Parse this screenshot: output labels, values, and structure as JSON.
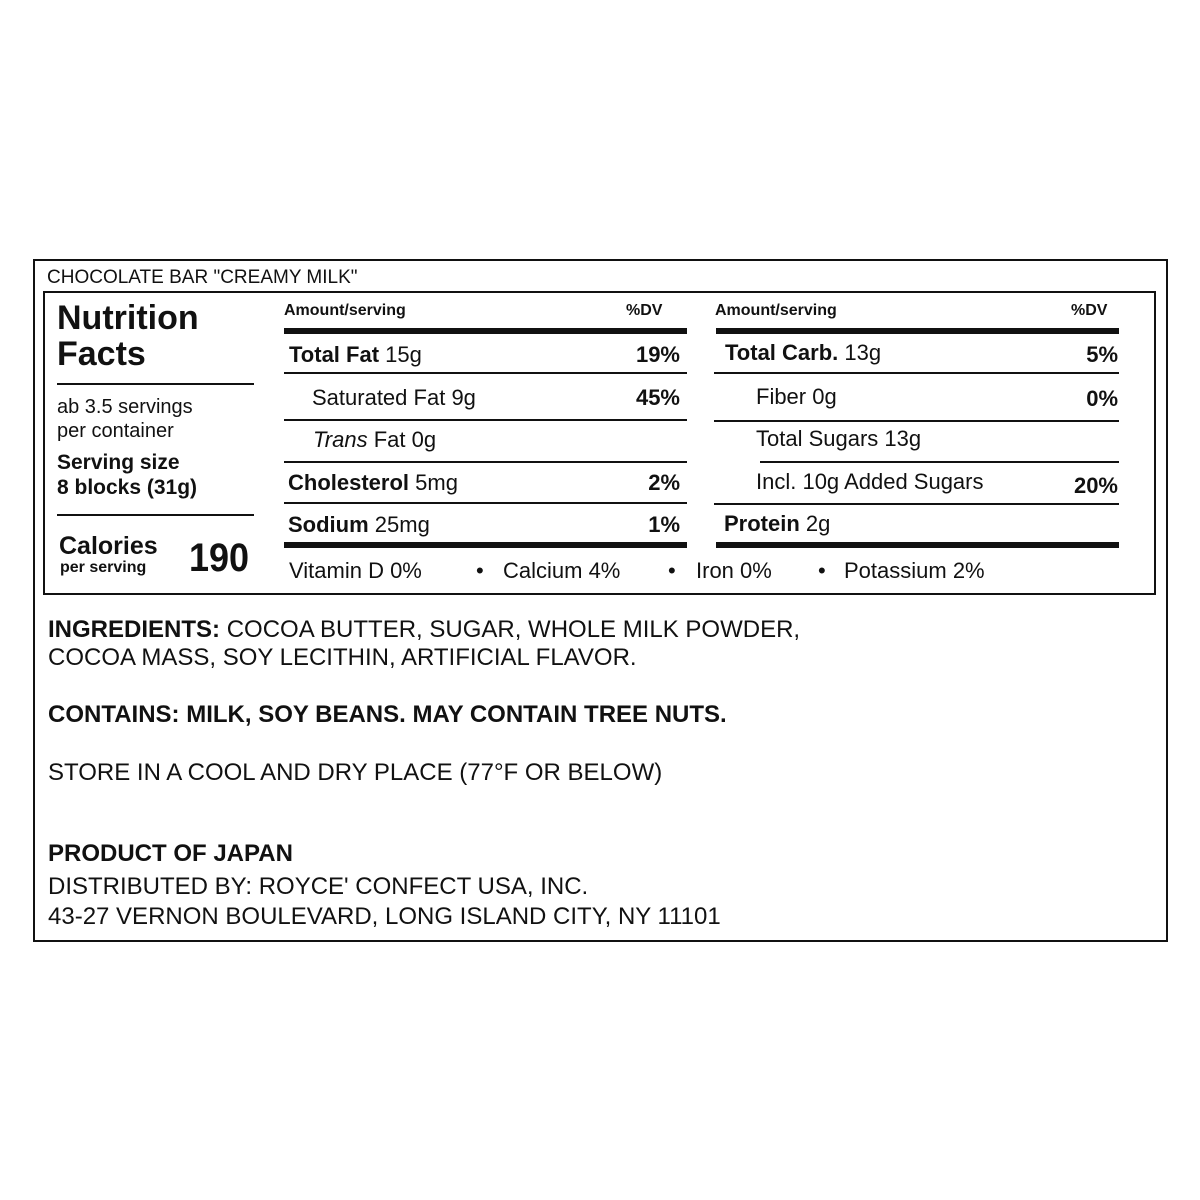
{
  "product_title": "CHOCOLATE BAR \"CREAMY MILK\"",
  "nutrition": {
    "heading_line1": "Nutrition",
    "heading_line2": "Facts",
    "servings_line1": "ab 3.5 servings",
    "servings_line2": "per container",
    "serving_size_label": "Serving size",
    "serving_size_value": "8 blocks (31g)",
    "calories_label": "Calories",
    "calories_sub": "per serving",
    "calories_value": "190",
    "col_amount_header": "Amount/serving",
    "col_dv_header": "%DV",
    "left_rows": [
      {
        "label": "Total Fat",
        "amount": "15g",
        "dv": "19%"
      },
      {
        "label": "Saturated Fat",
        "amount": "9g",
        "dv": "45%"
      },
      {
        "label": "Trans",
        "amount": "Fat 0g",
        "dv": ""
      },
      {
        "label": "Cholesterol",
        "amount": "5mg",
        "dv": "2%"
      },
      {
        "label": "Sodium",
        "amount": "25mg",
        "dv": "1%"
      }
    ],
    "right_rows": [
      {
        "label": "Total Carb.",
        "amount": "13g",
        "dv": "5%"
      },
      {
        "label": "Fiber",
        "amount": "0g",
        "dv": "0%"
      },
      {
        "label": "Total Sugars",
        "amount": "13g",
        "dv": ""
      },
      {
        "label": "Incl. 10g Added Sugars",
        "amount": "",
        "dv": "20%"
      },
      {
        "label": "Protein",
        "amount": "2g",
        "dv": ""
      }
    ],
    "micros": [
      "Vitamin D 0%",
      "Calcium 4%",
      "Iron 0%",
      "Potassium 2%"
    ],
    "bullet": "•"
  },
  "ingredients": {
    "label": "INGREDIENTS:",
    "line1": "COCOA BUTTER, SUGAR, WHOLE MILK POWDER,",
    "line2": "COCOA MASS, SOY LECITHIN, ARTIFICIAL FLAVOR."
  },
  "contains": "CONTAINS: MILK, SOY BEANS. MAY CONTAIN TREE NUTS.",
  "storage": "STORE IN A COOL AND DRY PLACE (77°F OR BELOW)",
  "origin": "PRODUCT OF JAPAN",
  "distributor_line1": "DISTRIBUTED BY: ROYCE' CONFECT USA, INC.",
  "distributor_line2": "43-27 VERNON BOULEVARD, LONG ISLAND CITY, NY 11101"
}
